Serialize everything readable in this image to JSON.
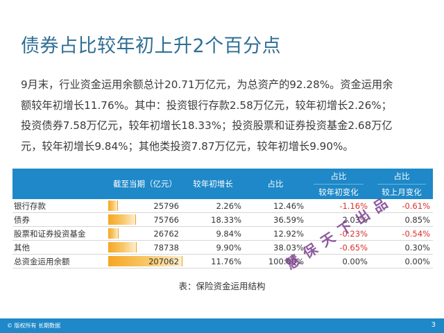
{
  "title": "债券占比较年初上升2个百分点",
  "paragraph": [
    "9月末，行业资金运用余额总计20.71万亿元，为总资产的92.28%。资金运用余",
    "额较年初增长11.76%。其中：投资银行存款2.58万亿元，较年初增长2.26%；",
    "投资债券7.58万亿元，较年初增长18.33%；投资股票和证券投资基金2.68万亿",
    "元，较年初增长9.84%；其他类投资7.87万亿元，较年初增长9.90%。"
  ],
  "table": {
    "headers": {
      "label": "",
      "amount": "截至当期（亿元）",
      "growth": "较年初增长",
      "share": "占比",
      "share_change_ytd_top": "占比",
      "share_change_ytd_bottom": "较年初变化",
      "share_change_mom_top": "占比",
      "share_change_mom_bottom": "较上月变化"
    },
    "rows": [
      {
        "label": "银行存款",
        "amount": "25796",
        "amount_value": 25796,
        "growth": "2.26%",
        "share": "12.46%",
        "ytd": "-1.16%",
        "mom": "-0.61%"
      },
      {
        "label": "债券",
        "amount": "75766",
        "amount_value": 75766,
        "growth": "18.33%",
        "share": "36.59%",
        "ytd": "2.03%",
        "mom": "0.85%"
      },
      {
        "label": "股票和证券投资基金",
        "amount": "26762",
        "amount_value": 26762,
        "growth": "9.84%",
        "share": "12.92%",
        "ytd": "-0.23%",
        "mom": "-0.54%"
      },
      {
        "label": "其他",
        "amount": "78738",
        "amount_value": 78738,
        "growth": "9.90%",
        "share": "38.03%",
        "ytd": "-0.65%",
        "mom": "0.30%"
      },
      {
        "label": "总资金运用余额",
        "amount": "207062",
        "amount_value": 207062,
        "growth": "11.76%",
        "share": "100.00%",
        "ytd": "0.00%",
        "mom": "0.00%"
      }
    ],
    "bar_max": 207062
  },
  "caption": "表：保险资金运用结构",
  "watermark": "慧保天下出品",
  "footer": {
    "copyright": "© 版权所有 长期数据",
    "page": "3"
  },
  "colors": {
    "accent": "#1e88c8",
    "title": "#2e6e94",
    "negative": "#d9302b",
    "bar": "#f5a623",
    "watermark": "#7b3f8c"
  }
}
